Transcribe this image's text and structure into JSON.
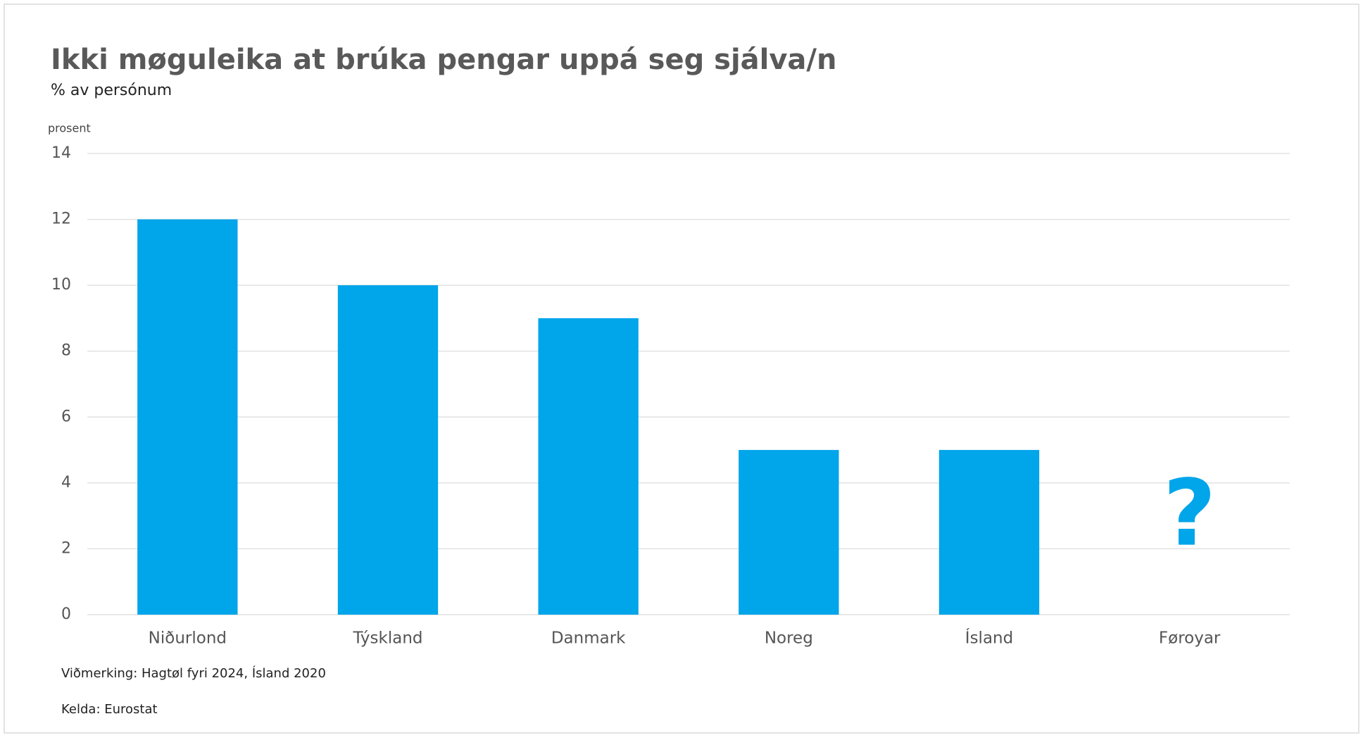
{
  "chart_data": {
    "type": "bar",
    "title": "Ikki møguleika at brúka pengar uppá seg sjálva/n",
    "subtitle": "% av persónum",
    "y_label": "prosent",
    "categories": [
      "Niðurlond",
      "Týskland",
      "Danmark",
      "Noreg",
      "Ísland",
      "Føroyar"
    ],
    "values": [
      12,
      10,
      9,
      5,
      5,
      null
    ],
    "missing_marker": "?",
    "color": "#00a5ea",
    "ylim": [
      0,
      14
    ],
    "yticks": [
      0,
      2,
      4,
      6,
      8,
      10,
      12,
      14
    ],
    "grid": true,
    "note": "Viðmerking: Hagtøl fyri 2024, Ísland 2020",
    "source": "Kelda: Eurostat"
  }
}
